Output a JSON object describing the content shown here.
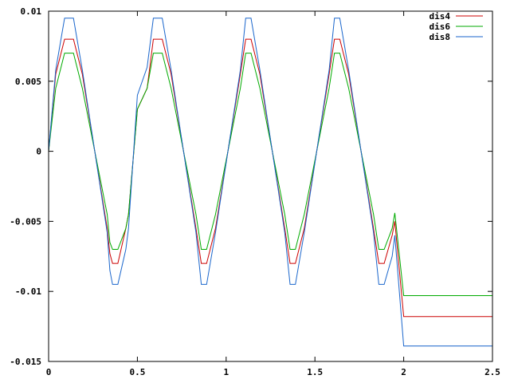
{
  "chart_data": {
    "type": "line",
    "title": "",
    "xlabel": "",
    "ylabel": "",
    "xlim": [
      0,
      2.5
    ],
    "ylim": [
      -0.015,
      0.01
    ],
    "grid": false,
    "legend_position": "top-right",
    "x_ticks": [
      {
        "value": 0,
        "label": "0"
      },
      {
        "value": 0.5,
        "label": "0.5"
      },
      {
        "value": 1,
        "label": "1"
      },
      {
        "value": 1.5,
        "label": "1.5"
      },
      {
        "value": 2,
        "label": "2"
      },
      {
        "value": 2.5,
        "label": "2.5"
      }
    ],
    "y_ticks": [
      {
        "value": 0.01,
        "label": "0.01"
      },
      {
        "value": 0.005,
        "label": "0.005"
      },
      {
        "value": 0,
        "label": "0"
      },
      {
        "value": -0.005,
        "label": "-0.005"
      },
      {
        "value": -0.01,
        "label": "-0.01"
      },
      {
        "value": -0.015,
        "label": "-0.015"
      }
    ],
    "series": [
      {
        "name": "dis4",
        "color": "#cc0000",
        "points": [
          [
            0,
            0
          ],
          [
            0.04,
            0.0055
          ],
          [
            0.09,
            0.008
          ],
          [
            0.14,
            0.008
          ],
          [
            0.19,
            0.0055
          ],
          [
            0.33,
            -0.0055
          ],
          [
            0.345,
            -0.0073
          ],
          [
            0.36,
            -0.008
          ],
          [
            0.39,
            -0.008
          ],
          [
            0.435,
            -0.0055
          ],
          [
            0.45,
            -0.0045
          ],
          [
            0.5,
            0.003
          ],
          [
            0.555,
            0.0045
          ],
          [
            0.59,
            0.008
          ],
          [
            0.64,
            0.008
          ],
          [
            0.69,
            0.0055
          ],
          [
            0.83,
            -0.0055
          ],
          [
            0.86,
            -0.008
          ],
          [
            0.89,
            -0.008
          ],
          [
            0.94,
            -0.0055
          ],
          [
            1.08,
            0.0055
          ],
          [
            1.11,
            0.008
          ],
          [
            1.14,
            0.008
          ],
          [
            1.19,
            0.0055
          ],
          [
            1.33,
            -0.0055
          ],
          [
            1.36,
            -0.008
          ],
          [
            1.39,
            -0.008
          ],
          [
            1.44,
            -0.0055
          ],
          [
            1.58,
            0.0055
          ],
          [
            1.61,
            0.008
          ],
          [
            1.64,
            0.008
          ],
          [
            1.69,
            0.0055
          ],
          [
            1.83,
            -0.0055
          ],
          [
            1.86,
            -0.008
          ],
          [
            1.89,
            -0.008
          ],
          [
            1.935,
            -0.006
          ],
          [
            1.95,
            -0.005
          ],
          [
            2.0,
            -0.0118
          ],
          [
            2.5,
            -0.0118
          ]
        ]
      },
      {
        "name": "dis6",
        "color": "#00aa00",
        "points": [
          [
            0,
            0
          ],
          [
            0.04,
            0.0045
          ],
          [
            0.09,
            0.007
          ],
          [
            0.14,
            0.007
          ],
          [
            0.19,
            0.0045
          ],
          [
            0.33,
            -0.0045
          ],
          [
            0.345,
            -0.0065
          ],
          [
            0.36,
            -0.007
          ],
          [
            0.39,
            -0.007
          ],
          [
            0.435,
            -0.0055
          ],
          [
            0.45,
            -0.0045
          ],
          [
            0.5,
            0.003
          ],
          [
            0.555,
            0.0045
          ],
          [
            0.59,
            0.007
          ],
          [
            0.64,
            0.007
          ],
          [
            0.69,
            0.0045
          ],
          [
            0.83,
            -0.0045
          ],
          [
            0.86,
            -0.007
          ],
          [
            0.89,
            -0.007
          ],
          [
            0.94,
            -0.0045
          ],
          [
            1.08,
            0.0045
          ],
          [
            1.11,
            0.007
          ],
          [
            1.14,
            0.007
          ],
          [
            1.19,
            0.0045
          ],
          [
            1.33,
            -0.0045
          ],
          [
            1.36,
            -0.007
          ],
          [
            1.39,
            -0.007
          ],
          [
            1.44,
            -0.0045
          ],
          [
            1.58,
            0.0045
          ],
          [
            1.61,
            0.007
          ],
          [
            1.64,
            0.007
          ],
          [
            1.69,
            0.0045
          ],
          [
            1.83,
            -0.0045
          ],
          [
            1.86,
            -0.007
          ],
          [
            1.89,
            -0.007
          ],
          [
            1.935,
            -0.0055
          ],
          [
            1.95,
            -0.0044
          ],
          [
            2.0,
            -0.0103
          ],
          [
            2.5,
            -0.0103
          ]
        ]
      },
      {
        "name": "dis8",
        "color": "#1a66cc",
        "points": [
          [
            0,
            0
          ],
          [
            0.04,
            0.0058
          ],
          [
            0.09,
            0.0095
          ],
          [
            0.14,
            0.0095
          ],
          [
            0.19,
            0.0058
          ],
          [
            0.33,
            -0.0058
          ],
          [
            0.345,
            -0.0085
          ],
          [
            0.36,
            -0.0095
          ],
          [
            0.39,
            -0.0095
          ],
          [
            0.435,
            -0.007
          ],
          [
            0.45,
            -0.0055
          ],
          [
            0.5,
            0.004
          ],
          [
            0.555,
            0.006
          ],
          [
            0.59,
            0.0095
          ],
          [
            0.64,
            0.0095
          ],
          [
            0.69,
            0.0058
          ],
          [
            0.83,
            -0.0058
          ],
          [
            0.86,
            -0.0095
          ],
          [
            0.89,
            -0.0095
          ],
          [
            0.94,
            -0.0058
          ],
          [
            1.08,
            0.0058
          ],
          [
            1.11,
            0.0095
          ],
          [
            1.14,
            0.0095
          ],
          [
            1.19,
            0.0058
          ],
          [
            1.33,
            -0.0058
          ],
          [
            1.36,
            -0.0095
          ],
          [
            1.39,
            -0.0095
          ],
          [
            1.44,
            -0.0058
          ],
          [
            1.58,
            0.0058
          ],
          [
            1.61,
            0.0095
          ],
          [
            1.64,
            0.0095
          ],
          [
            1.69,
            0.0058
          ],
          [
            1.83,
            -0.0058
          ],
          [
            1.86,
            -0.0095
          ],
          [
            1.89,
            -0.0095
          ],
          [
            1.935,
            -0.0075
          ],
          [
            1.95,
            -0.006
          ],
          [
            2.0,
            -0.0139
          ],
          [
            2.5,
            -0.0139
          ]
        ]
      }
    ]
  }
}
